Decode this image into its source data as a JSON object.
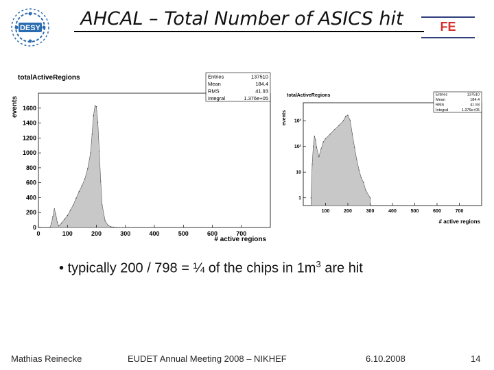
{
  "slide": {
    "logo_text": "DESY",
    "title": "AHCAL – Total Number of ASICS hit",
    "fe_label": "FE",
    "bullet_prefix": "typically 200 / 798 = ¼ of the chips in 1m",
    "bullet_sup": "3",
    "bullet_suffix": " are hit",
    "footer": {
      "author": "Mathias Reinecke",
      "event": "EUDET Annual Meeting 2008 – NIKHEF",
      "date": "6.10.2008",
      "page": "14"
    },
    "colors": {
      "title_rule": "#000000",
      "fe_text": "#d8322c",
      "fe_lines": "#2f3e7c",
      "logo": "#2b6cb0",
      "hist_fill": "#c8c8c8"
    }
  },
  "chart_data": [
    {
      "type": "area",
      "title": "totalActiveRegions",
      "xlabel": "# active regions",
      "ylabel": "events",
      "xlim": [
        0,
        800
      ],
      "ylim": [
        0,
        1800
      ],
      "xticks": [
        0,
        100,
        200,
        300,
        400,
        500,
        600,
        700
      ],
      "yticks": [
        0,
        200,
        400,
        600,
        800,
        1000,
        1200,
        1400,
        1600
      ],
      "stats": [
        {
          "label": "Entries",
          "value": "137510"
        },
        {
          "label": "Mean",
          "value": "184.4"
        },
        {
          "label": "RMS",
          "value": "41.93"
        },
        {
          "label": "Integral",
          "value": "1.376e+05"
        }
      ],
      "x": [
        40,
        45,
        50,
        55,
        60,
        65,
        70,
        80,
        90,
        100,
        110,
        120,
        130,
        140,
        150,
        160,
        170,
        180,
        185,
        190,
        195,
        200,
        205,
        210,
        215,
        220,
        230,
        240,
        250,
        260,
        270,
        280,
        290,
        300
      ],
      "y": [
        0,
        60,
        150,
        250,
        180,
        70,
        20,
        60,
        110,
        160,
        230,
        300,
        390,
        480,
        560,
        650,
        790,
        1000,
        1250,
        1500,
        1630,
        1620,
        1410,
        1020,
        620,
        300,
        90,
        30,
        10,
        5,
        3,
        2,
        1,
        0
      ]
    },
    {
      "type": "area",
      "title": "totalActiveRegions",
      "xlabel": "# active regions",
      "ylabel": "events",
      "y_scale": "log",
      "xlim": [
        0,
        800
      ],
      "ylim": [
        0.5,
        5000
      ],
      "xticks": [
        100,
        200,
        300,
        400,
        500,
        600,
        700
      ],
      "yticks": [
        1,
        10,
        100,
        1000
      ],
      "ytick_labels": [
        "1",
        "10",
        "10²",
        "10³"
      ],
      "stats": [
        {
          "label": "Entries",
          "value": "137510"
        },
        {
          "label": "Mean",
          "value": "184.4"
        },
        {
          "label": "RMS",
          "value": "41.93"
        },
        {
          "label": "Integral",
          "value": "1.376e+05"
        }
      ],
      "x": [
        35,
        40,
        45,
        50,
        55,
        60,
        70,
        80,
        90,
        100,
        120,
        140,
        160,
        180,
        190,
        200,
        210,
        220,
        230,
        240,
        250,
        260,
        270,
        280,
        300
      ],
      "y": [
        1,
        20,
        100,
        250,
        180,
        90,
        40,
        80,
        150,
        200,
        300,
        450,
        650,
        1000,
        1500,
        1650,
        1050,
        300,
        90,
        30,
        12,
        6,
        4,
        2,
        1
      ]
    }
  ]
}
